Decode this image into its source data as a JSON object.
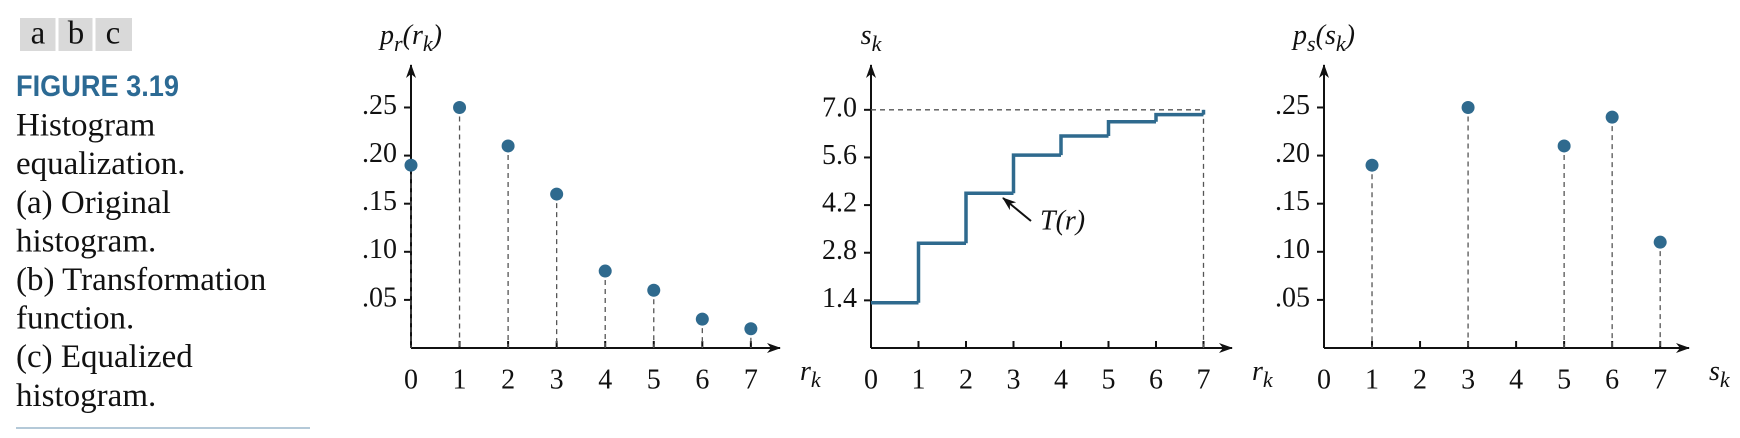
{
  "caption": {
    "panel_labels": [
      "a",
      "b",
      "c"
    ],
    "figure_label": "FIGURE 3.19",
    "lines": [
      "Histogram",
      "equalization.",
      "(a) Original",
      "histogram.",
      "(b) Transformation",
      "function.",
      "(c) Equalized",
      "histogram."
    ]
  },
  "chart_data": [
    {
      "type": "stem",
      "x": [
        0,
        1,
        2,
        3,
        4,
        5,
        6,
        7
      ],
      "values": [
        0.19,
        0.25,
        0.21,
        0.16,
        0.08,
        0.06,
        0.03,
        0.02
      ],
      "color": "#2f6a8e",
      "xlim": [
        0,
        7.6
      ],
      "xticks": [
        0,
        1,
        2,
        3,
        4,
        5,
        6,
        7
      ],
      "ylim": [
        0,
        0.29
      ],
      "yticks": [
        {
          "value": 0.05,
          "label": ".05"
        },
        {
          "value": 0.1,
          "label": ".10"
        },
        {
          "value": 0.15,
          "label": ".15"
        },
        {
          "value": 0.2,
          "label": ".20"
        },
        {
          "value": 0.25,
          "label": ".25"
        }
      ],
      "xlabel": [
        "r",
        "k"
      ],
      "xlabel_sub": [
        false,
        true
      ],
      "ylabel": [
        "p",
        "r",
        "(",
        "r",
        "k",
        ")"
      ],
      "ylabel_sub": [
        false,
        true,
        false,
        false,
        true,
        false
      ],
      "grid": false
    },
    {
      "type": "step",
      "x": [
        0,
        1,
        2,
        3,
        4,
        5,
        6,
        7
      ],
      "values": [
        1.33,
        3.08,
        4.55,
        5.67,
        6.23,
        6.65,
        6.86,
        7.0
      ],
      "color": "#2f6a8e",
      "xlim": [
        0,
        7.6
      ],
      "xticks": [
        0,
        1,
        2,
        3,
        4,
        5,
        6,
        7
      ],
      "ylim": [
        0,
        8.2
      ],
      "yticks": [
        1.4,
        2.8,
        4.2,
        5.6,
        {
          "value": 7,
          "label": "7.0"
        }
      ],
      "xlabel": [
        "r",
        "k"
      ],
      "xlabel_sub": [
        false,
        true
      ],
      "ylabel": [
        "s",
        "k"
      ],
      "ylabel_sub": [
        false,
        true
      ],
      "annotation": "T(r)",
      "grid": false
    },
    {
      "type": "stem",
      "x": [
        1,
        3,
        5,
        6,
        7
      ],
      "values": [
        0.19,
        0.25,
        0.21,
        0.24,
        0.11
      ],
      "color": "#2f6a8e",
      "xlim": [
        0,
        7.6
      ],
      "xticks": [
        0,
        1,
        2,
        3,
        4,
        5,
        6,
        7
      ],
      "ylim": [
        0,
        0.29
      ],
      "yticks": [
        {
          "value": 0.05,
          "label": ".05"
        },
        {
          "value": 0.1,
          "label": ".10"
        },
        {
          "value": 0.15,
          "label": ".15"
        },
        {
          "value": 0.2,
          "label": ".20"
        },
        {
          "value": 0.25,
          "label": ".25"
        }
      ],
      "xlabel": [
        "s",
        "k"
      ],
      "xlabel_sub": [
        false,
        true
      ],
      "ylabel": [
        "p",
        "s",
        "(",
        "s",
        "k",
        ")"
      ],
      "ylabel_sub": [
        false,
        true,
        false,
        false,
        true,
        false
      ],
      "grid": false
    }
  ]
}
